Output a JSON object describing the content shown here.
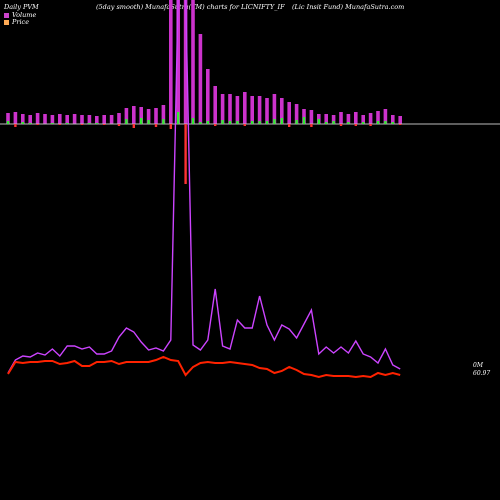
{
  "header": {
    "left": "Daily PVM",
    "center_left": "(5day smooth) MunafaSutra(TM) charts for LICNIFTY_IF",
    "center_right": "(Lic Insit Fund) MunafaSutra.com"
  },
  "legend": [
    {
      "label": "Volume",
      "color": "#cc44cc"
    },
    {
      "label": "Price",
      "color": "#ffaa55"
    }
  ],
  "colors": {
    "volume": "#cc33cc",
    "pvm_line": "#cc44ff",
    "price_line": "#ff2200",
    "pvm_up": "#ff3333",
    "pvm_down": "#33ee33",
    "zero_line": "#bbbbbb"
  },
  "chart_data": {
    "type": "bar",
    "volume": [
      11,
      12,
      10,
      9,
      11,
      10,
      9,
      10,
      9,
      10,
      9,
      9,
      8,
      9,
      9,
      11,
      16,
      18,
      17,
      15,
      16,
      19,
      200,
      210,
      220,
      210,
      90,
      55,
      38,
      30,
      30,
      28,
      32,
      28,
      28,
      26,
      30,
      26,
      22,
      20,
      15,
      14,
      10,
      10,
      9,
      12,
      10,
      12,
      9,
      11,
      13,
      15,
      9,
      8
    ],
    "pvm": [
      -3,
      3,
      -2,
      -1,
      1,
      0,
      -1,
      1,
      -1,
      0,
      1,
      -1,
      -1,
      1,
      0,
      2,
      -5,
      4,
      -6,
      -4,
      3,
      -5,
      5,
      -12,
      60,
      -6,
      -2,
      -3,
      2,
      -4,
      -3,
      -3,
      2,
      -3,
      -3,
      -3,
      -5,
      -6,
      3,
      -4,
      -7,
      3,
      -5,
      -2,
      -3,
      2,
      -2,
      2,
      -2,
      2,
      -3,
      -3,
      -2,
      1
    ],
    "pvm_line": [
      373,
      360,
      356,
      357,
      353,
      355,
      349,
      356,
      346,
      346,
      349,
      347,
      354,
      354,
      351,
      337,
      328,
      332,
      342,
      350,
      348,
      351,
      340,
      -200,
      -150,
      345,
      350,
      340,
      289,
      346,
      349,
      320,
      328,
      328,
      296,
      325,
      340,
      325,
      329,
      338,
      324,
      310,
      354,
      347,
      353,
      347,
      353,
      341,
      354,
      357,
      363,
      349,
      365,
      369
    ],
    "price_line": [
      374,
      362,
      363,
      362,
      362,
      361,
      361,
      364,
      363,
      361,
      366,
      366,
      362,
      362,
      361,
      364,
      362,
      362,
      362,
      362,
      360,
      357,
      360,
      361,
      375,
      367,
      363,
      362,
      363,
      363,
      362,
      363,
      364,
      365,
      368,
      369,
      373,
      371,
      367,
      370,
      374,
      375,
      377,
      375,
      376,
      376,
      376,
      377,
      376,
      377,
      373,
      375,
      373,
      375
    ],
    "end_labels": [
      "0M",
      "60.97"
    ]
  }
}
